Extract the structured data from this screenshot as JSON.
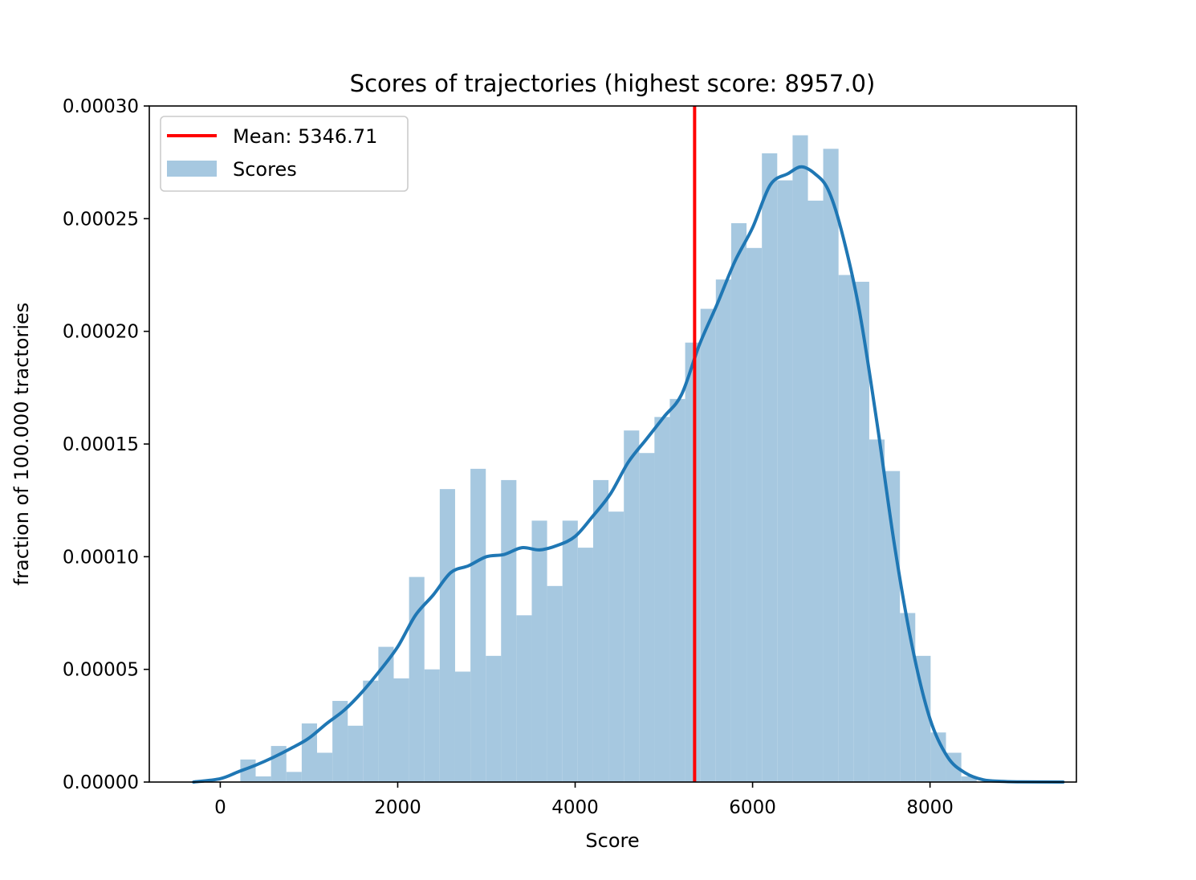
{
  "chart_data": {
    "type": "bar",
    "title": "Scores of trajectories (highest score: 8957.0)",
    "xlabel": "Score",
    "ylabel": "fraction of 100.000 tractories",
    "xlim": [
      -800,
      9650
    ],
    "ylim": [
      0,
      0.0003
    ],
    "xticks": [
      0,
      2000,
      4000,
      6000,
      8000
    ],
    "yticks": [
      0.0,
      5e-05,
      0.0001,
      0.00015,
      0.0002,
      0.00025,
      0.0003
    ],
    "xtick_labels": [
      "0",
      "2000",
      "4000",
      "6000",
      "8000"
    ],
    "ytick_labels": [
      "0.00000",
      "0.00005",
      "0.00010",
      "0.00015",
      "0.00020",
      "0.00025",
      "0.00030"
    ],
    "grid": false,
    "legend_position": "top-left",
    "colors": {
      "bars": "#a6c8e0",
      "kde": "#1f77b4",
      "mean": "#ff0000"
    },
    "histogram": {
      "name": "Scores",
      "bin_width": 172.9,
      "bin_starts": [
        226,
        399,
        572,
        745,
        918,
        1091,
        1264,
        1436,
        1609,
        1782,
        1955,
        2128,
        2301,
        2474,
        2647,
        2820,
        2993,
        3165,
        3338,
        3511,
        3684,
        3857,
        4030,
        4203,
        4376,
        4549,
        4722,
        4894,
        5067,
        5240,
        5413,
        5586,
        5759,
        5932,
        6105,
        6278,
        6451,
        6623,
        6796,
        6969,
        7142,
        7315,
        7488,
        7661,
        7834,
        8007,
        8180,
        8353
      ],
      "values": [
        1e-05,
        2.5e-06,
        1.6e-05,
        4.5e-06,
        2.6e-05,
        1.3e-05,
        3.6e-05,
        2.5e-05,
        4.5e-05,
        6e-05,
        4.6e-05,
        9.1e-05,
        5e-05,
        0.00013,
        4.9e-05,
        0.000139,
        5.6e-05,
        0.000134,
        7.4e-05,
        0.000116,
        8.7e-05,
        0.000116,
        0.000104,
        0.000134,
        0.00012,
        0.000156,
        0.000146,
        0.000162,
        0.00017,
        0.000195,
        0.00021,
        0.000223,
        0.000248,
        0.000237,
        0.000279,
        0.000267,
        0.000287,
        0.000258,
        0.000281,
        0.000225,
        0.000222,
        0.000152,
        0.000138,
        7.5e-05,
        5.6e-05,
        2.2e-05,
        1.3e-05,
        2.5e-06
      ]
    },
    "kde": {
      "x": [
        -300,
        0,
        200,
        400,
        600,
        800,
        1000,
        1200,
        1400,
        1600,
        1800,
        2000,
        2200,
        2400,
        2600,
        2800,
        3000,
        3200,
        3400,
        3600,
        3800,
        4000,
        4200,
        4400,
        4600,
        4800,
        5000,
        5200,
        5400,
        5600,
        5800,
        6000,
        6200,
        6400,
        6550,
        6700,
        6850,
        7000,
        7200,
        7400,
        7600,
        7800,
        8000,
        8200,
        8400,
        8600,
        8800,
        9000,
        9500
      ],
      "y": [
        0,
        1.5e-06,
        4.5e-06,
        7.5e-06,
        1.1e-05,
        1.5e-05,
        1.95e-05,
        2.6e-05,
        3.2e-05,
        4e-05,
        4.95e-05,
        6e-05,
        7.4e-05,
        8.3e-05,
        9.3e-05,
        9.6e-05,
        0.0001,
        0.000101,
        0.000104,
        0.000103,
        0.000105,
        0.000109,
        0.000118,
        0.000128,
        0.000142,
        0.000152,
        0.000162,
        0.000172,
        0.000194,
        0.000212,
        0.000231,
        0.000246,
        0.000265,
        0.00027,
        0.000273,
        0.00027,
        0.000263,
        0.000245,
        0.00021,
        0.00016,
        0.000105,
        6e-05,
        2.8e-05,
        1.1e-05,
        4e-06,
        1e-06,
        3e-07,
        1e-07,
        0
      ]
    },
    "mean_line": {
      "x": 5346.71,
      "label": "Mean: 5346.71"
    },
    "legend": [
      "Mean: 5346.71",
      "Scores"
    ]
  }
}
